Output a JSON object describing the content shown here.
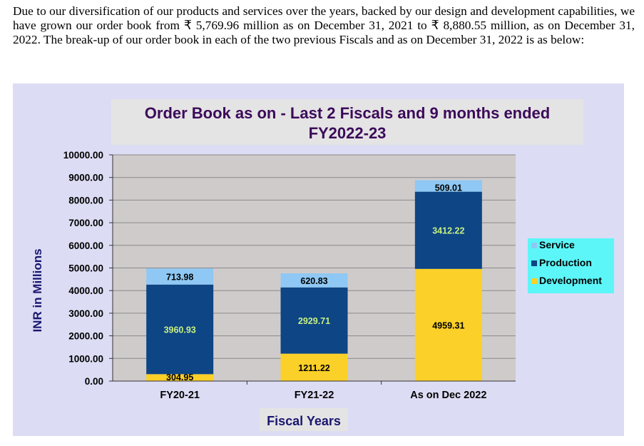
{
  "paragraph": "Due to our diversification of our products and services over the years, backed by our design and development capabilities, we have grown our order book from ₹ 5,769.96 million as on December 31, 2021 to ₹ 8,880.55 million, as on December 31, 2022. The break-up of our order book in each of the two previous Fiscals and as on December 31, 2022 is as below:",
  "chart_data": {
    "type": "bar",
    "stacked": true,
    "title": "Order Book as on - Last 2 Fiscals and 9 months ended FY2022-23",
    "title_lines": [
      "Order Book as on - Last 2 Fiscals and 9 months ended",
      "FY2022-23"
    ],
    "xlabel": "Fiscal Years",
    "ylabel": "INR in Millions",
    "ylim": [
      0,
      10000
    ],
    "yticks": [
      "0.00",
      "1000.00",
      "2000.00",
      "3000.00",
      "4000.00",
      "5000.00",
      "6000.00",
      "7000.00",
      "8000.00",
      "9000.00",
      "10000.00"
    ],
    "categories": [
      "FY20-21",
      "FY21-22",
      "As on Dec 2022"
    ],
    "series": [
      {
        "name": "Development",
        "values": [
          304.95,
          1211.22,
          4959.31
        ],
        "labels": [
          "304.95",
          "1211.22",
          "4959.31"
        ],
        "color": "#fbd028",
        "label_color": "#000000"
      },
      {
        "name": "Production",
        "values": [
          3960.93,
          2929.71,
          3412.22
        ],
        "labels": [
          "3960.93",
          "2929.71",
          "3412.22"
        ],
        "color": "#0d4585",
        "label_color": "#c8f080"
      },
      {
        "name": "Service",
        "values": [
          713.98,
          620.83,
          509.01
        ],
        "labels": [
          "713.98",
          "620.83",
          "509.01"
        ],
        "color": "#8fc8f4",
        "label_color": "#000000"
      }
    ],
    "legend_order": [
      "Service",
      "Production",
      "Development"
    ],
    "legend_position": "right",
    "grid": true,
    "colors": {
      "plot_bg": "#cfcbcb",
      "outer_bg": "#dcdcf4",
      "title_bg": "#e4e4e4",
      "title_color": "#3c0a5a",
      "axis_label_color": "#1a1670",
      "legend_bg": "#5cf6f8"
    }
  }
}
